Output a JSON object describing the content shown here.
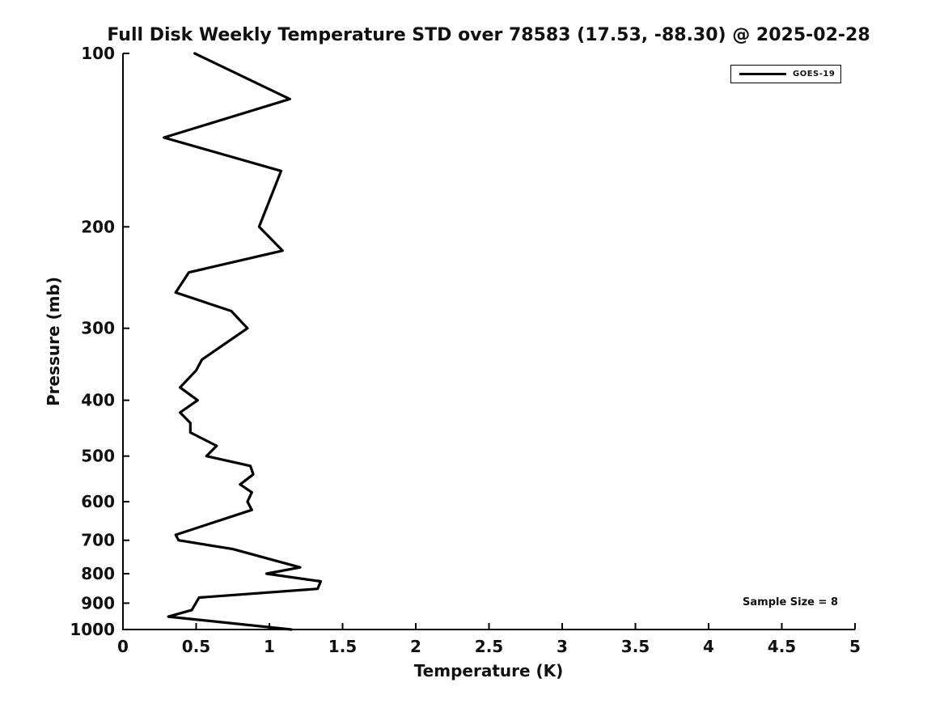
{
  "title": "Full Disk Weekly Temperature STD over 78583 (17.53, -88.30) @ 2025-02-28",
  "axes": {
    "x": {
      "label": "Temperature (K)"
    },
    "y": {
      "label": "Pressure (mb)"
    }
  },
  "legend": {
    "items": [
      {
        "label": "GOES-19",
        "color": "#000000"
      }
    ]
  },
  "annotations": {
    "sample_size": "Sample Size = 8"
  },
  "chart_data": {
    "type": "line",
    "title": "Full Disk Weekly Temperature STD over 78583 (17.53, -88.30) @ 2025-02-28",
    "xlabel": "Temperature (K)",
    "ylabel": "Pressure (mb)",
    "xlim": [
      0,
      5
    ],
    "ylim": [
      100,
      1000
    ],
    "xscale": "linear",
    "yscale": "log",
    "y_inverted": true,
    "grid": false,
    "legend_position": "upper right",
    "xticks": [
      0,
      0.5,
      1,
      1.5,
      2,
      2.5,
      3,
      3.5,
      4,
      4.5,
      5
    ],
    "yticks": [
      100,
      200,
      300,
      400,
      500,
      600,
      700,
      800,
      900,
      1000
    ],
    "series": [
      {
        "name": "GOES-19",
        "color": "#000000",
        "points_format": "[temperature_std_K, pressure_mb]",
        "points": [
          [
            0.49,
            100
          ],
          [
            1.14,
            120
          ],
          [
            0.28,
            140
          ],
          [
            1.08,
            160
          ],
          [
            0.93,
            200
          ],
          [
            1.09,
            220
          ],
          [
            0.45,
            240
          ],
          [
            0.36,
            260
          ],
          [
            0.74,
            280
          ],
          [
            0.85,
            300
          ],
          [
            0.54,
            340
          ],
          [
            0.5,
            355
          ],
          [
            0.39,
            380
          ],
          [
            0.51,
            400
          ],
          [
            0.39,
            420
          ],
          [
            0.46,
            438
          ],
          [
            0.46,
            455
          ],
          [
            0.64,
            480
          ],
          [
            0.57,
            500
          ],
          [
            0.87,
            520
          ],
          [
            0.89,
            538
          ],
          [
            0.8,
            560
          ],
          [
            0.88,
            578
          ],
          [
            0.85,
            600
          ],
          [
            0.88,
            620
          ],
          [
            0.36,
            685
          ],
          [
            0.38,
            700
          ],
          [
            0.75,
            725
          ],
          [
            1.21,
            780
          ],
          [
            0.98,
            800
          ],
          [
            1.35,
            825
          ],
          [
            1.33,
            850
          ],
          [
            0.52,
            880
          ],
          [
            0.47,
            925
          ],
          [
            0.31,
            950
          ],
          [
            1.15,
            1000
          ]
        ]
      }
    ]
  }
}
